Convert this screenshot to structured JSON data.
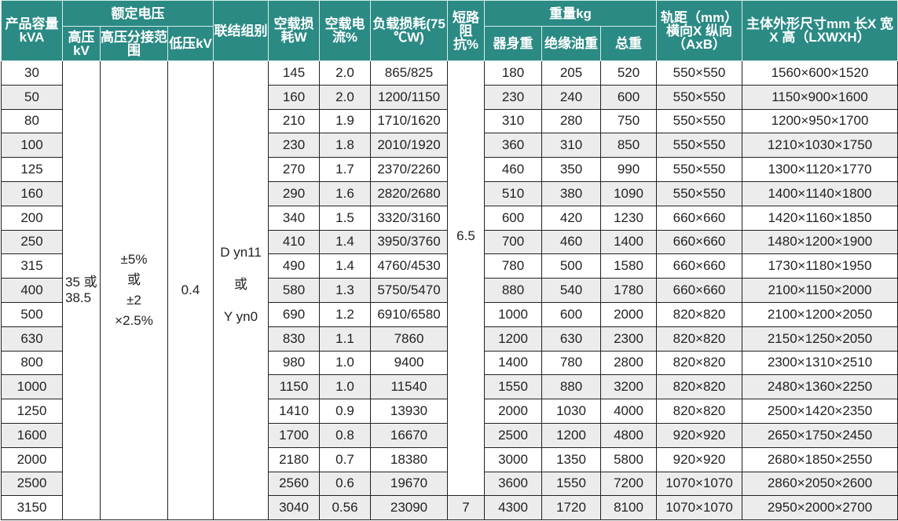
{
  "colors": {
    "header_bg": "#2b8a84",
    "stripe": "#ececec"
  },
  "header": {
    "capacity": "产品容量kVA",
    "rated_voltage": "额定电压",
    "hv": "高压kV",
    "hv_tap": "高压分接范围",
    "lv": "低压kV",
    "vector_group": "联结组别",
    "noload_loss": "空载损耗W",
    "noload_current": "空载电流%",
    "load_loss": "负载损耗(75 ℃W)",
    "impedance": "短路阻抗%",
    "weight": "重量kg",
    "body_weight": "器身重",
    "oil_weight": "绝缘油重",
    "total_weight": "总重",
    "gauge": "轨距（mm）横向X 纵向（AxB）",
    "dims": "主体外形尺寸mm 长X 宽X 高（LXWXH）"
  },
  "merged": {
    "hv": [
      "35 或",
      "38.5"
    ],
    "hv_tap": [
      "±5%",
      "或",
      "±2",
      "×2.5%"
    ],
    "lv": "0.4",
    "vector_group": [
      "D yn11",
      "或",
      "Y yn0"
    ],
    "impedance_main": "6.5",
    "impedance_last": "7"
  },
  "rows": [
    [
      "30",
      "145",
      "2.0",
      "865/825",
      "180",
      "205",
      "520",
      "550×550",
      "1560×600×1520"
    ],
    [
      "50",
      "160",
      "2.0",
      "1200/1150",
      "230",
      "240",
      "600",
      "550×550",
      "1150×900×1600"
    ],
    [
      "80",
      "210",
      "1.9",
      "1710/1620",
      "310",
      "280",
      "750",
      "550×550",
      "1200×950×1700"
    ],
    [
      "100",
      "230",
      "1.8",
      "2010/1920",
      "360",
      "310",
      "850",
      "550×550",
      "1210×1030×1750"
    ],
    [
      "125",
      "270",
      "1.7",
      "2370/2260",
      "460",
      "350",
      "990",
      "550×550",
      "1300×1120×1770"
    ],
    [
      "160",
      "290",
      "1.6",
      "2820/2680",
      "510",
      "380",
      "1090",
      "550×550",
      "1400×1140×1800"
    ],
    [
      "200",
      "340",
      "1.5",
      "3320/3160",
      "600",
      "420",
      "1230",
      "660×660",
      "1420×1160×1850"
    ],
    [
      "250",
      "410",
      "1.4",
      "3950/3760",
      "700",
      "460",
      "1400",
      "660×660",
      "1480×1200×1900"
    ],
    [
      "315",
      "490",
      "1.4",
      "4760/4530",
      "780",
      "500",
      "1580",
      "660×660",
      "1730×1180×1950"
    ],
    [
      "400",
      "580",
      "1.3",
      "5750/5470",
      "880",
      "540",
      "1780",
      "660×660",
      "2100×1150×2000"
    ],
    [
      "500",
      "690",
      "1.2",
      "6910/6580",
      "1000",
      "600",
      "2000",
      "820×820",
      "2100×1200×2050"
    ],
    [
      "630",
      "830",
      "1.1",
      "7860",
      "1200",
      "630",
      "2300",
      "820×820",
      "2150×1250×2050"
    ],
    [
      "800",
      "980",
      "1.0",
      "9400",
      "1400",
      "780",
      "2800",
      "820×820",
      "2300×1310×2510"
    ],
    [
      "1000",
      "1150",
      "1.0",
      "11540",
      "1550",
      "880",
      "3200",
      "820×820",
      "2480×1360×2250"
    ],
    [
      "1250",
      "1410",
      "0.9",
      "13930",
      "2000",
      "1030",
      "4000",
      "820×820",
      "2500×1420×2350"
    ],
    [
      "1600",
      "1700",
      "0.8",
      "16670",
      "2500",
      "1200",
      "4800",
      "920×920",
      "2650×1750×2450"
    ],
    [
      "2000",
      "2180",
      "0.7",
      "18380",
      "3000",
      "1350",
      "5800",
      "920×920",
      "2680×1850×2550"
    ],
    [
      "2500",
      "2560",
      "0.6",
      "19670",
      "3600",
      "1550",
      "7200",
      "1070×1070",
      "2860×2050×2600"
    ],
    [
      "3150",
      "3040",
      "0.56",
      "23090",
      "4300",
      "1720",
      "8100",
      "1070×1070",
      "2950×2000×2700"
    ]
  ]
}
